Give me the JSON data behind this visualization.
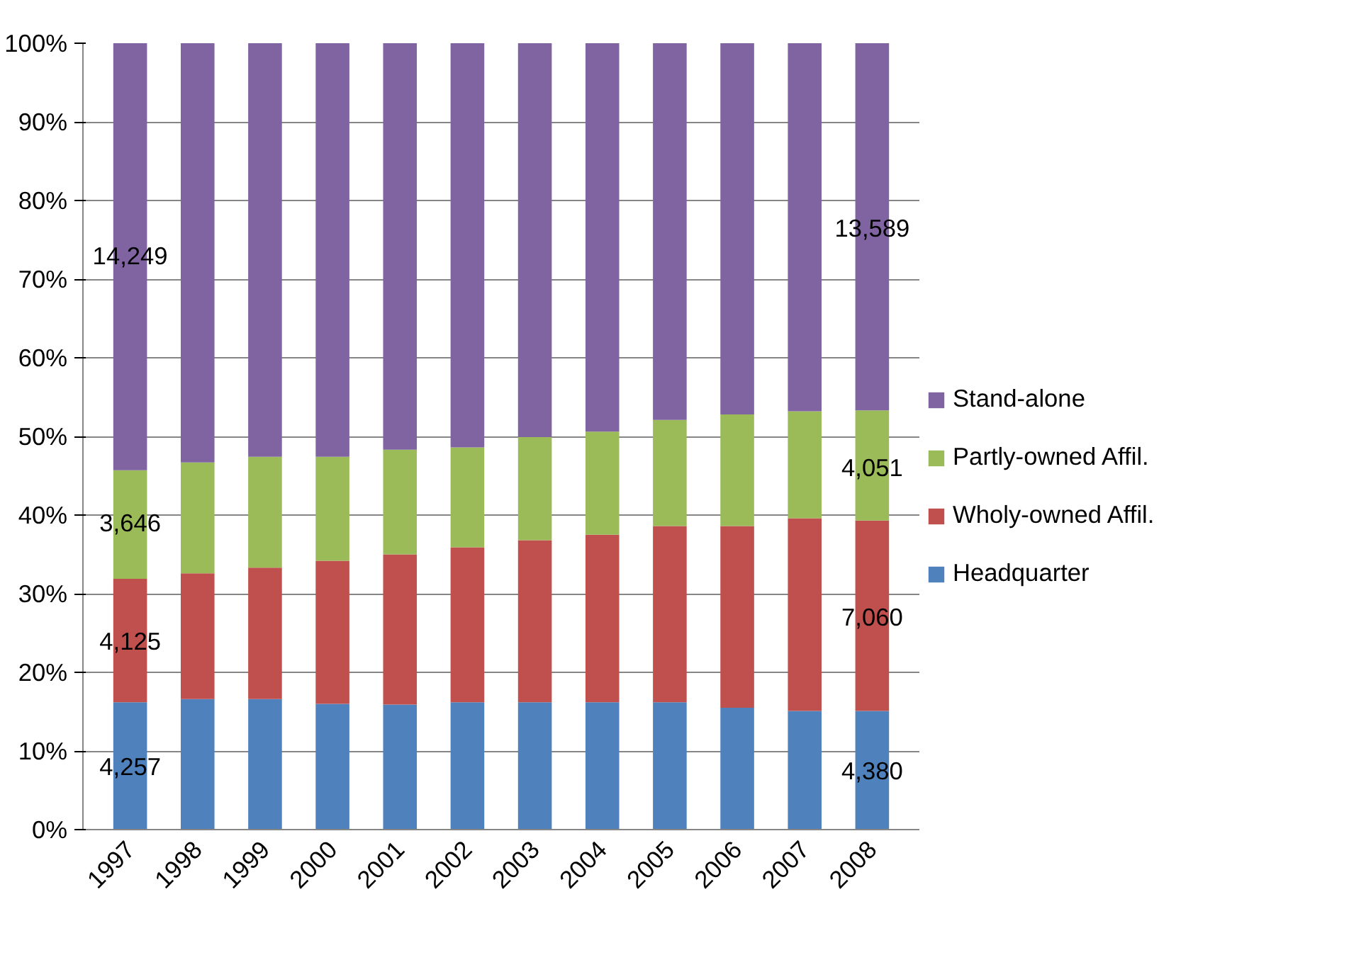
{
  "chart_data": {
    "type": "bar",
    "stacked": true,
    "categories": [
      "1997",
      "1998",
      "1999",
      "2000",
      "2001",
      "2002",
      "2003",
      "2004",
      "2005",
      "2006",
      "2007",
      "2008"
    ],
    "series": [
      {
        "name": "Headquarter",
        "color": "#4f81bd",
        "values": [
          16.2,
          16.6,
          16.6,
          16.0,
          15.9,
          16.2,
          16.2,
          16.2,
          16.2,
          15.5,
          15.1,
          15.1
        ]
      },
      {
        "name": "Wholy-owned Affil.",
        "color": "#c0504d",
        "values": [
          15.7,
          16.0,
          16.7,
          18.2,
          19.1,
          19.7,
          20.6,
          21.3,
          22.4,
          23.1,
          24.5,
          24.2
        ]
      },
      {
        "name": "Partly-owned Affil.",
        "color": "#9bbb59",
        "values": [
          13.8,
          14.1,
          14.1,
          13.2,
          13.3,
          12.7,
          13.1,
          13.1,
          13.5,
          14.2,
          13.6,
          14.0
        ]
      },
      {
        "name": "Stand-alone",
        "color": "#8064a2",
        "values": [
          54.3,
          53.3,
          52.6,
          52.6,
          51.7,
          51.4,
          50.1,
          49.4,
          47.9,
          47.2,
          46.8,
          46.7
        ]
      }
    ],
    "annotations": [
      {
        "text": "4,257",
        "x": "1997",
        "y": 8
      },
      {
        "text": "4,125",
        "x": "1997",
        "y": 24
      },
      {
        "text": "3,646",
        "x": "1997",
        "y": 39
      },
      {
        "text": "14,249",
        "x": "1997",
        "y": 73
      },
      {
        "text": "4,380",
        "x": "2008",
        "y": 7.5
      },
      {
        "text": "7,060",
        "x": "2008",
        "y": 27
      },
      {
        "text": "4,051",
        "x": "2008",
        "y": 46
      },
      {
        "text": "13,589",
        "x": "2008",
        "y": 76.5
      }
    ],
    "ylim": [
      0,
      100
    ],
    "yticks": [
      {
        "value": 0,
        "label": "0%"
      },
      {
        "value": 10,
        "label": "10%"
      },
      {
        "value": 20,
        "label": "20%"
      },
      {
        "value": 30,
        "label": "30%"
      },
      {
        "value": 40,
        "label": "40%"
      },
      {
        "value": 50,
        "label": "50%"
      },
      {
        "value": 60,
        "label": "60%"
      },
      {
        "value": 70,
        "label": "70%"
      },
      {
        "value": 80,
        "label": "80%"
      },
      {
        "value": 90,
        "label": "90%"
      },
      {
        "value": 100,
        "label": "100%"
      }
    ],
    "grid": "y",
    "legend": "right"
  }
}
